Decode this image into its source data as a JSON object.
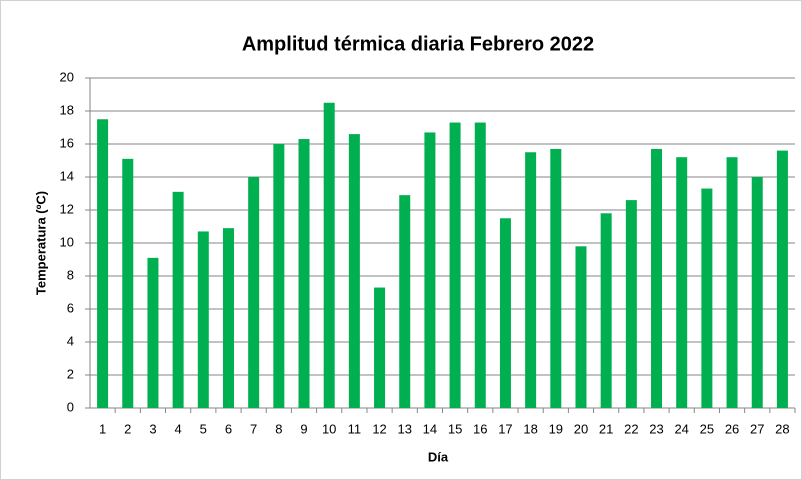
{
  "chart_data": {
    "type": "bar",
    "title": "Amplitud térmica diaria Febrero 2022",
    "x_label": "Día",
    "y_label": "Temperatura (ºC)",
    "categories": [
      "1",
      "2",
      "3",
      "4",
      "5",
      "6",
      "7",
      "8",
      "9",
      "10",
      "11",
      "12",
      "13",
      "14",
      "15",
      "16",
      "17",
      "18",
      "19",
      "20",
      "21",
      "22",
      "23",
      "24",
      "25",
      "26",
      "27",
      "28"
    ],
    "values": [
      17.5,
      15.1,
      9.1,
      13.1,
      10.7,
      10.9,
      14.0,
      16.0,
      16.3,
      18.5,
      16.6,
      7.3,
      12.9,
      16.7,
      17.3,
      17.3,
      11.5,
      15.5,
      15.7,
      9.8,
      11.8,
      12.6,
      15.7,
      15.2,
      13.3,
      15.2,
      14.0,
      15.6
    ],
    "color": "#00b050",
    "ylim": [
      0,
      20
    ],
    "yticks": [
      0,
      2,
      4,
      6,
      8,
      10,
      12,
      14,
      16,
      18,
      20
    ],
    "grid": true
  }
}
